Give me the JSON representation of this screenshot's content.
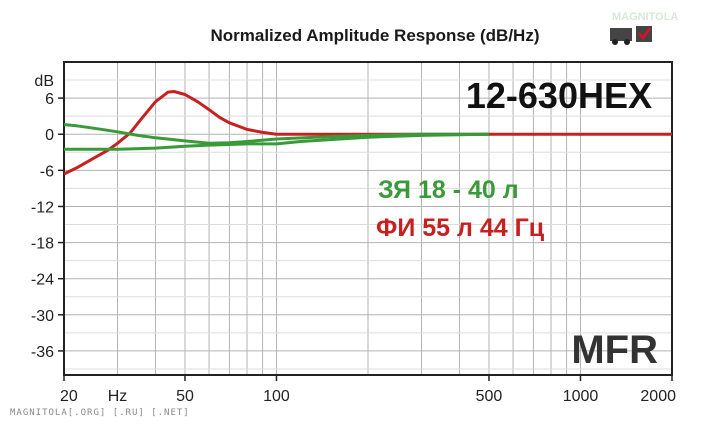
{
  "chart_data": {
    "type": "line",
    "title": "Normalized Amplitude Response (dB/Hz)",
    "ylabel": "dB",
    "xlabel": "Hz",
    "x_scale": "log",
    "xlim": [
      20,
      2000
    ],
    "ylim": [
      -40,
      12
    ],
    "x_tick_labels": [
      "20",
      "50",
      "100",
      "500",
      "1000",
      "2000"
    ],
    "y_tick_labels": [
      "6",
      "0",
      "-6",
      "-12",
      "-18",
      "-24",
      "-30",
      "-36"
    ],
    "y_ticks": [
      6,
      0,
      -6,
      -12,
      -18,
      -24,
      -30,
      -36
    ],
    "grid": true,
    "model": "12-630HEX",
    "brand": "MFR",
    "series": [
      {
        "name": "ФИ 55 л 44 Гц",
        "color": "#c62020",
        "points": [
          [
            20,
            -6.6
          ],
          [
            22,
            -5.6
          ],
          [
            25,
            -4.0
          ],
          [
            28,
            -2.6
          ],
          [
            30,
            -1.5
          ],
          [
            33,
            0.2
          ],
          [
            36,
            2.6
          ],
          [
            40,
            5.4
          ],
          [
            44,
            7.0
          ],
          [
            46,
            7.1
          ],
          [
            50,
            6.6
          ],
          [
            55,
            5.4
          ],
          [
            60,
            4.1
          ],
          [
            65,
            2.8
          ],
          [
            70,
            1.9
          ],
          [
            80,
            0.8
          ],
          [
            90,
            0.3
          ],
          [
            100,
            0.0
          ],
          [
            200,
            0.0
          ],
          [
            500,
            0.0
          ],
          [
            1000,
            0.0
          ],
          [
            2000,
            0.0
          ]
        ]
      },
      {
        "name": "ЗЯ 18 - 40 л",
        "color": "#3a9a3a",
        "points": [
          [
            20,
            1.6
          ],
          [
            22,
            1.4
          ],
          [
            25,
            1.0
          ],
          [
            30,
            0.4
          ],
          [
            35,
            -0.2
          ],
          [
            40,
            -0.6
          ],
          [
            50,
            -1.1
          ],
          [
            60,
            -1.5
          ],
          [
            70,
            -1.4
          ],
          [
            80,
            -1.2
          ],
          [
            100,
            -0.8
          ],
          [
            150,
            -0.4
          ],
          [
            200,
            -0.2
          ],
          [
            300,
            0.0
          ],
          [
            500,
            0.0
          ]
        ]
      },
      {
        "name": "ЗЯ 18 - 40 л",
        "color": "#3a9a3a",
        "points": [
          [
            20,
            -2.5
          ],
          [
            25,
            -2.5
          ],
          [
            30,
            -2.5
          ],
          [
            40,
            -2.3
          ],
          [
            50,
            -2.0
          ],
          [
            60,
            -1.8
          ],
          [
            70,
            -1.7
          ],
          [
            80,
            -1.6
          ],
          [
            100,
            -1.6
          ],
          [
            120,
            -1.2
          ],
          [
            150,
            -0.9
          ],
          [
            200,
            -0.5
          ],
          [
            300,
            -0.2
          ],
          [
            500,
            0.0
          ]
        ]
      }
    ]
  },
  "watermark": {
    "logo_text": "MAGNITOLA",
    "bottom_text": "MAGNITOLA[.ORG] [.RU] [.NET]"
  }
}
